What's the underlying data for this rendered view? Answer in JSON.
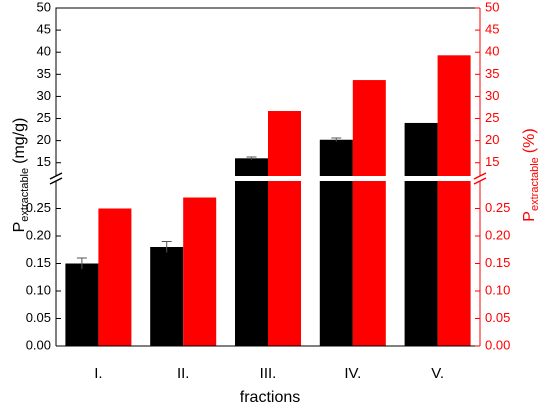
{
  "chart_data": {
    "type": "bar",
    "x_label": "fractions",
    "y_label": {
      "main": "P",
      "subscript": "extractable",
      "unit": "(mg/g)"
    },
    "y2_label": {
      "main": "P",
      "subscript": "extractable",
      "unit": "(%)"
    },
    "categories": [
      "I.",
      "II.",
      "III.",
      "IV.",
      "V."
    ],
    "series": [
      {
        "color": "#000000",
        "values": [
          0.15,
          0.18,
          16,
          20.2,
          24
        ],
        "errors": [
          0.01,
          0.01,
          0.3,
          0.4,
          null
        ]
      },
      {
        "color": "#ff0000",
        "axis": "y2",
        "values": [
          0.25,
          0.27,
          26.7,
          33.7,
          39.3
        ]
      }
    ],
    "ylim": [
      0,
      50
    ],
    "ybreak": [
      0.3,
      12
    ],
    "yticks": [
      {
        "value": 0,
        "label": "0.00"
      },
      0.05,
      {
        "value": 0.1,
        "label": "0.10"
      },
      0.15,
      {
        "value": 0.2,
        "label": "0.20"
      },
      0.25,
      15,
      20,
      25,
      30,
      35,
      40,
      45,
      50
    ],
    "y2lim": [
      0,
      50
    ],
    "y2break": [
      0.3,
      12
    ],
    "y2ticks": [
      {
        "value": 0,
        "label": "0.00"
      },
      0.05,
      {
        "value": 0.1,
        "label": "0.10"
      },
      0.15,
      {
        "value": 0.2,
        "label": "0.20"
      },
      0.25,
      15,
      20,
      25,
      30,
      35,
      40,
      45,
      50
    ],
    "y2_color": "#ff0000"
  }
}
